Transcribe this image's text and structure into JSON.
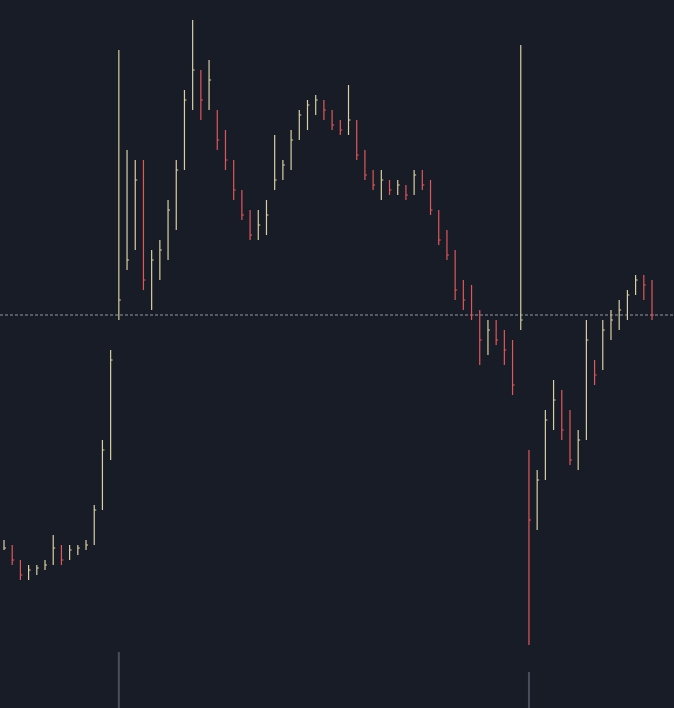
{
  "chart_data": {
    "type": "ohlc",
    "ylim": [
      0,
      708
    ],
    "up_color": "#d8cfa2",
    "down_color": "#e0575b",
    "price_line": 393,
    "price_line_color": "#9598a1",
    "high": [
      168,
      163,
      148,
      143,
      143,
      148,
      173,
      163,
      163,
      163,
      168,
      203,
      268,
      358,
      658,
      558,
      548,
      548,
      458,
      468,
      508,
      548,
      618,
      688,
      638,
      648,
      598,
      578,
      548,
      518,
      498,
      498,
      508,
      573,
      548,
      578,
      598,
      608,
      613,
      608,
      598,
      588,
      623,
      588,
      558,
      538,
      538,
      528,
      528,
      523,
      538,
      538,
      528,
      498,
      478,
      458,
      428,
      423,
      398,
      388,
      388,
      378,
      368,
      663,
      258,
      238,
      298,
      328,
      318,
      298,
      278,
      388,
      348,
      388,
      398,
      408,
      418,
      433,
      433,
      428
    ],
    "low": [
      158,
      143,
      128,
      128,
      133,
      138,
      143,
      143,
      148,
      153,
      158,
      163,
      198,
      248,
      388,
      438,
      458,
      418,
      398,
      428,
      448,
      478,
      538,
      598,
      588,
      598,
      558,
      538,
      508,
      488,
      468,
      468,
      473,
      518,
      528,
      538,
      568,
      578,
      593,
      588,
      578,
      573,
      573,
      548,
      528,
      518,
      508,
      513,
      513,
      508,
      513,
      518,
      493,
      463,
      448,
      408,
      398,
      388,
      343,
      353,
      363,
      343,
      313,
      378,
      63,
      178,
      228,
      278,
      268,
      243,
      238,
      268,
      323,
      338,
      368,
      378,
      388,
      413,
      408,
      388
    ],
    "close": [
      160,
      148,
      133,
      138,
      140,
      143,
      160,
      148,
      158,
      160,
      163,
      198,
      258,
      348,
      408,
      448,
      528,
      428,
      448,
      458,
      498,
      538,
      608,
      638,
      608,
      628,
      568,
      548,
      518,
      493,
      473,
      483,
      493,
      528,
      543,
      568,
      593,
      603,
      608,
      598,
      583,
      578,
      588,
      553,
      533,
      523,
      528,
      518,
      523,
      513,
      533,
      523,
      498,
      468,
      453,
      418,
      408,
      393,
      368,
      378,
      368,
      358,
      323,
      388,
      188,
      228,
      288,
      308,
      278,
      248,
      268,
      368,
      333,
      378,
      388,
      398,
      413,
      428,
      423,
      393
    ],
    "volume": [
      0,
      0,
      0,
      0,
      0,
      0,
      0,
      0,
      0,
      0,
      0,
      0,
      0,
      0,
      56,
      0,
      0,
      0,
      0,
      0,
      0,
      0,
      0,
      0,
      0,
      0,
      0,
      0,
      0,
      0,
      0,
      0,
      0,
      0,
      0,
      0,
      0,
      0,
      0,
      0,
      0,
      0,
      0,
      0,
      0,
      0,
      0,
      0,
      0,
      0,
      0,
      0,
      0,
      0,
      0,
      0,
      0,
      0,
      0,
      0,
      0,
      0,
      0,
      0,
      36,
      0,
      0,
      0,
      0,
      0,
      0,
      0,
      0,
      0,
      0,
      0,
      0,
      0,
      0,
      0
    ],
    "vlim": [
      0,
      100
    ],
    "volume_color": "#4a4e5c"
  }
}
